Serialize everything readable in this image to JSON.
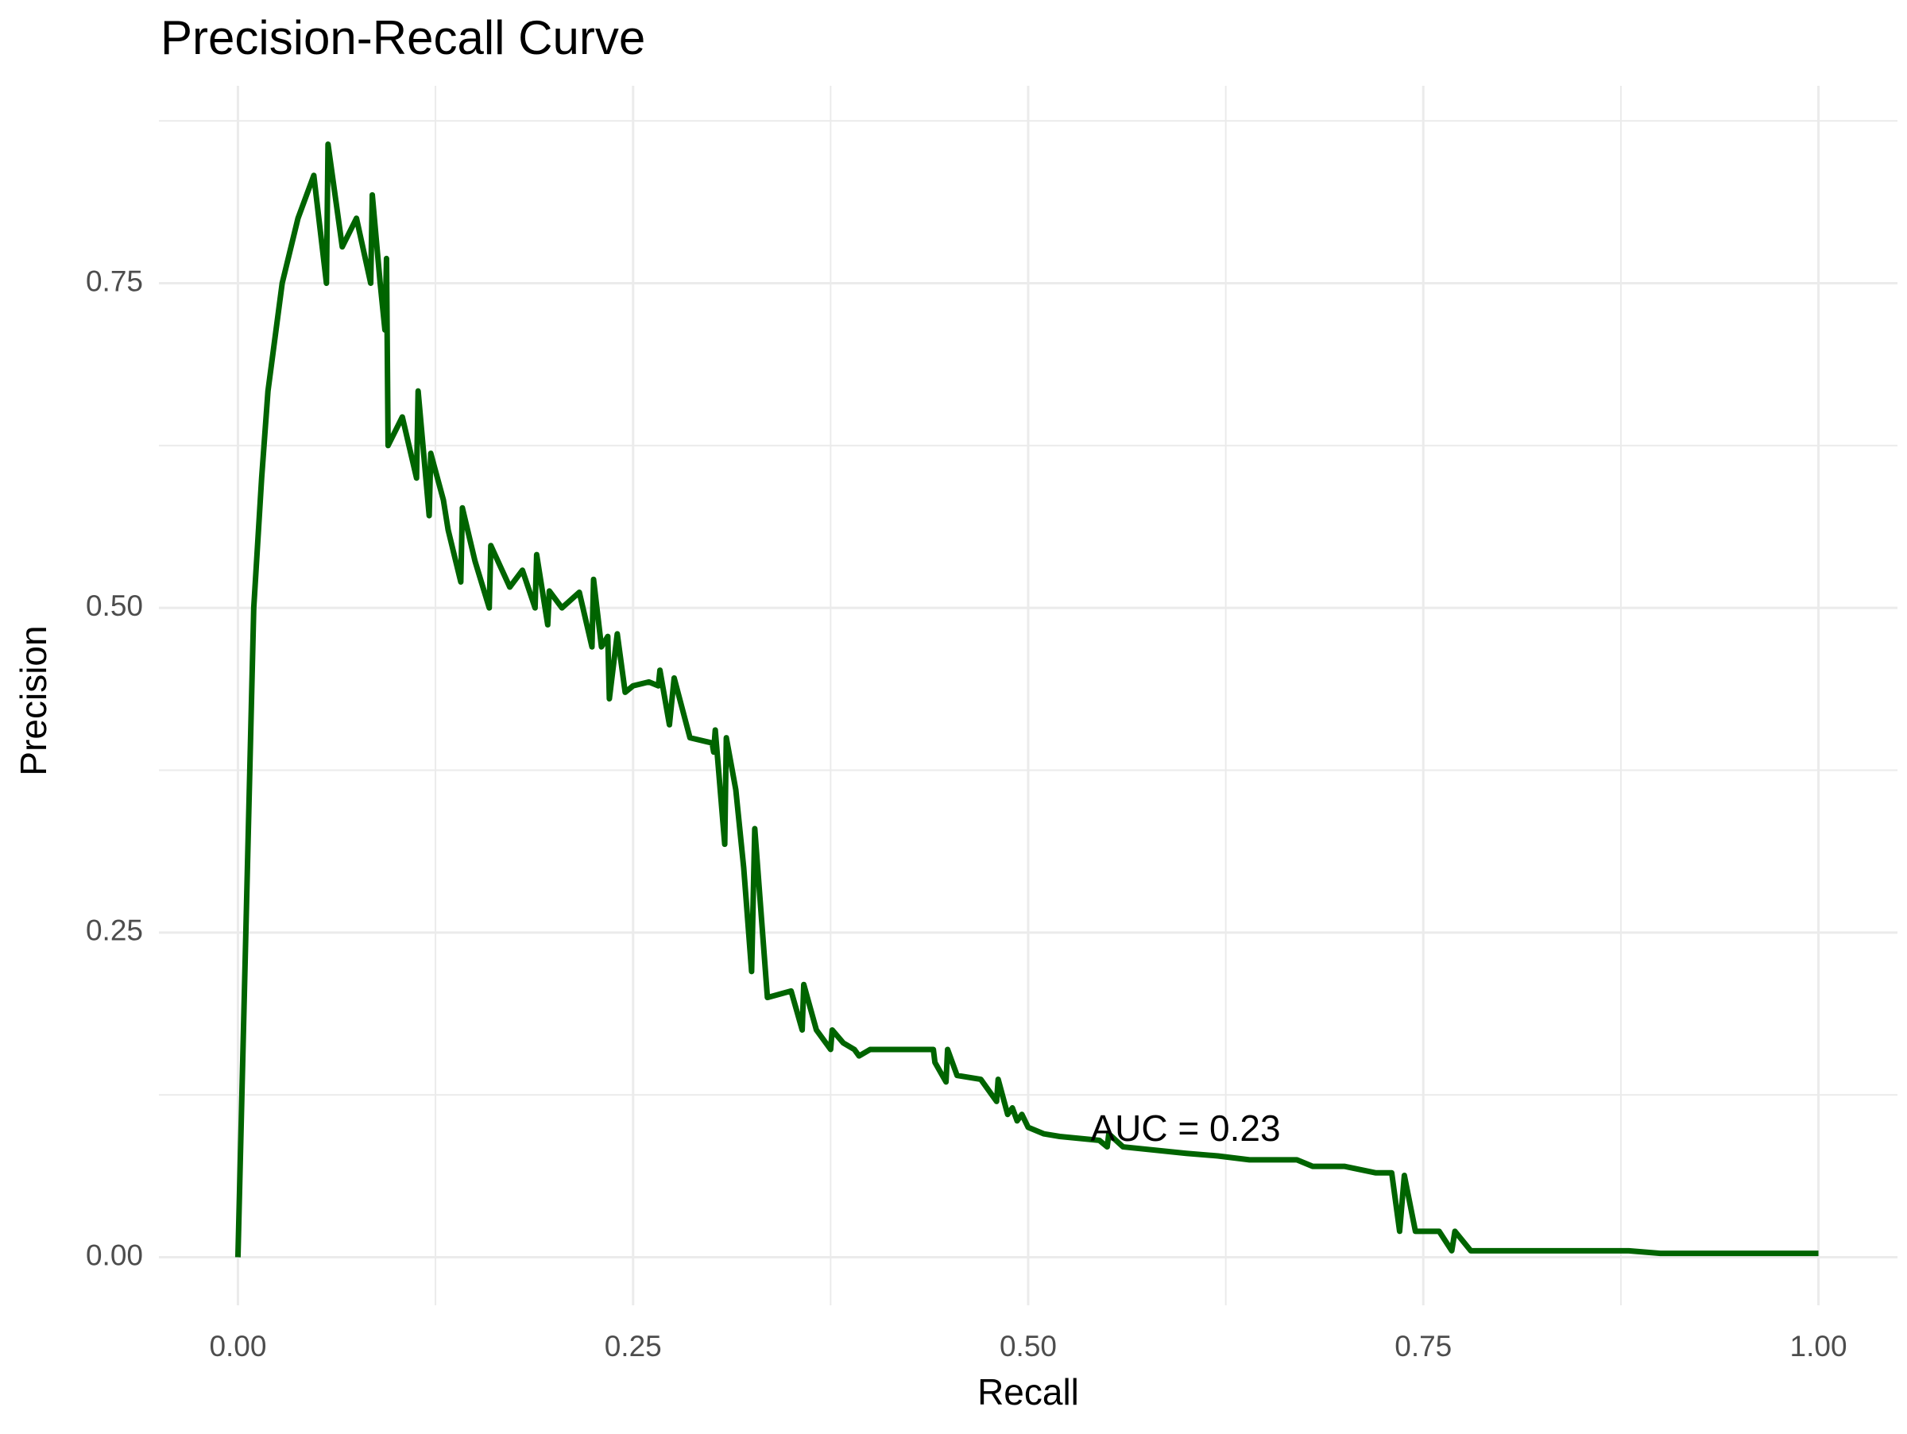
{
  "chart_data": {
    "type": "line",
    "title": "Precision-Recall Curve",
    "x_label": "Recall",
    "y_label": "Precision",
    "annotation": "AUC = 0.23",
    "grid": true,
    "xlim": [
      -0.05,
      1.05
    ],
    "ylim": [
      -0.037,
      0.902
    ],
    "xticks": [
      {
        "value": 0,
        "label": "0.00"
      },
      {
        "value": 0.25,
        "label": "0.25"
      },
      {
        "value": 0.5,
        "label": "0.50"
      },
      {
        "value": 0.75,
        "label": "0.75"
      },
      {
        "value": 1,
        "label": "1.00"
      }
    ],
    "yticks": [
      {
        "value": 0,
        "label": "0.00"
      },
      {
        "value": 0.25,
        "label": "0.25"
      },
      {
        "value": 0.5,
        "label": "0.50"
      },
      {
        "value": 0.75,
        "label": "0.75"
      }
    ],
    "series": [
      {
        "color": "#006400",
        "x": [
          0,
          0.005,
          0.01,
          0.015,
          0.019,
          0.028,
          0.038,
          0.048,
          0.056,
          0.057,
          0.066,
          0.075,
          0.084,
          0.085,
          0.09,
          0.093,
          0.094,
          0.095,
          0.104,
          0.113,
          0.114,
          0.121,
          0.122,
          0.13,
          0.133,
          0.141,
          0.142,
          0.15,
          0.159,
          0.16,
          0.172,
          0.18,
          0.188,
          0.189,
          0.196,
          0.197,
          0.205,
          0.216,
          0.224,
          0.225,
          0.23,
          0.234,
          0.235,
          0.24,
          0.245,
          0.25,
          0.26,
          0.266,
          0.267,
          0.273,
          0.276,
          0.286,
          0.3,
          0.301,
          0.302,
          0.308,
          0.309,
          0.315,
          0.32,
          0.325,
          0.327,
          0.335,
          0.35,
          0.357,
          0.358,
          0.366,
          0.375,
          0.376,
          0.383,
          0.39,
          0.393,
          0.4,
          0.43,
          0.44,
          0.441,
          0.448,
          0.449,
          0.455,
          0.47,
          0.48,
          0.481,
          0.487,
          0.49,
          0.493,
          0.496,
          0.5,
          0.51,
          0.52,
          0.545,
          0.55,
          0.551,
          0.56,
          0.6,
          0.62,
          0.64,
          0.67,
          0.68,
          0.7,
          0.72,
          0.73,
          0.735,
          0.738,
          0.745,
          0.76,
          0.768,
          0.77,
          0.78,
          0.88,
          0.9,
          1
        ],
        "values": [
          0,
          0.25,
          0.5,
          0.6,
          0.667,
          0.75,
          0.8,
          0.833,
          0.75,
          0.857,
          0.778,
          0.8,
          0.75,
          0.818,
          0.75,
          0.714,
          0.769,
          0.625,
          0.647,
          0.6,
          0.667,
          0.571,
          0.619,
          0.583,
          0.56,
          0.52,
          0.577,
          0.536,
          0.5,
          0.548,
          0.516,
          0.529,
          0.5,
          0.541,
          0.487,
          0.513,
          0.5,
          0.512,
          0.47,
          0.522,
          0.47,
          0.478,
          0.43,
          0.48,
          0.435,
          0.44,
          0.443,
          0.44,
          0.452,
          0.41,
          0.446,
          0.4,
          0.396,
          0.389,
          0.406,
          0.318,
          0.4,
          0.36,
          0.3,
          0.22,
          0.33,
          0.2,
          0.205,
          0.175,
          0.21,
          0.175,
          0.16,
          0.175,
          0.165,
          0.16,
          0.155,
          0.16,
          0.16,
          0.16,
          0.15,
          0.135,
          0.16,
          0.14,
          0.137,
          0.12,
          0.137,
          0.11,
          0.115,
          0.105,
          0.11,
          0.1,
          0.095,
          0.093,
          0.09,
          0.085,
          0.095,
          0.085,
          0.08,
          0.078,
          0.075,
          0.075,
          0.07,
          0.07,
          0.065,
          0.065,
          0.02,
          0.063,
          0.02,
          0.02,
          0.005,
          0.02,
          0.005,
          0.005,
          0.003,
          0.003
        ]
      }
    ]
  }
}
